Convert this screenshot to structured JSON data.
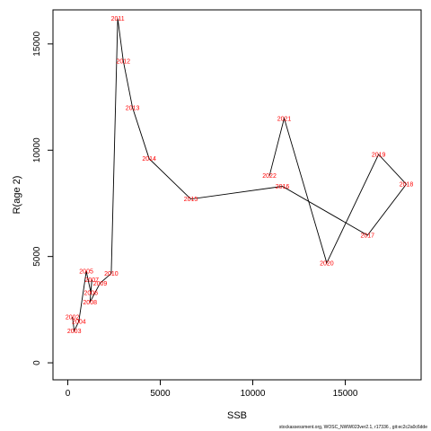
{
  "chart_data": {
    "type": "line",
    "xlabel": "SSB",
    "ylabel": "R(age 2)",
    "xlim": [
      -800,
      19100
    ],
    "ylim": [
      -800,
      16600
    ],
    "xticks": [
      0,
      5000,
      10000,
      15000
    ],
    "yticks": [
      0,
      5000,
      10000,
      15000
    ],
    "grid": false,
    "line_color": "#000000",
    "label_color": "#ff0000",
    "points": [
      {
        "label": "2002",
        "x": 250,
        "y": 2150
      },
      {
        "label": "2003",
        "x": 350,
        "y": 1500
      },
      {
        "label": "2004",
        "x": 600,
        "y": 1950
      },
      {
        "label": "2005",
        "x": 1000,
        "y": 4300
      },
      {
        "label": "2006",
        "x": 1250,
        "y": 3300
      },
      {
        "label": "2007",
        "x": 1300,
        "y": 3900
      },
      {
        "label": "2008",
        "x": 1200,
        "y": 2850
      },
      {
        "label": "2009",
        "x": 1750,
        "y": 3750
      },
      {
        "label": "2010",
        "x": 2350,
        "y": 4200
      },
      {
        "label": "2011",
        "x": 2700,
        "y": 16200
      },
      {
        "label": "2012",
        "x": 3000,
        "y": 14200
      },
      {
        "label": "2013",
        "x": 3500,
        "y": 12000
      },
      {
        "label": "2014",
        "x": 4400,
        "y": 9600
      },
      {
        "label": "2015",
        "x": 6650,
        "y": 7700
      },
      {
        "label": "2016",
        "x": 11600,
        "y": 8300
      },
      {
        "label": "2017",
        "x": 16200,
        "y": 6000
      },
      {
        "label": "2018",
        "x": 18300,
        "y": 8400
      },
      {
        "label": "2019",
        "x": 16800,
        "y": 9800
      },
      {
        "label": "2020",
        "x": 14000,
        "y": 4700
      },
      {
        "label": "2021",
        "x": 11700,
        "y": 11500
      },
      {
        "label": "2022",
        "x": 10900,
        "y": 8800
      }
    ]
  },
  "footer_text": "stockassessment.org, WOSC_NWW023ver2.1, r17336 , git:ec2c2a0c6dde"
}
